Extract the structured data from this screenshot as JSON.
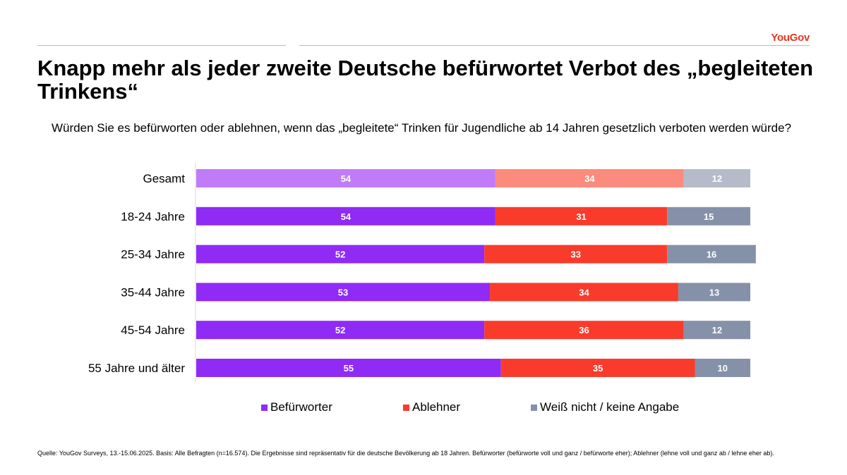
{
  "header": {
    "logo_text": "YouGov",
    "title": "Knapp mehr als jeder zweite Deutsche befürwortet Verbot des „begleiteten Trinkens“",
    "question": "Würden Sie es befürworten oder ablehnen, wenn das „begleitete“ Trinken für Jugendliche ab 14 Jahren gesetzlich verboten werden würde?"
  },
  "colors": {
    "accent": "#e8351f",
    "befuerworter": "#8f2bf5",
    "ablehner": "#f93b2b",
    "weiss_nicht": "#8591a8",
    "befuerworter_total": "#c07bf8",
    "ablehner_total": "#fb8b7d",
    "weiss_nicht_total": "#b5bbc8"
  },
  "chart_data": {
    "type": "bar",
    "orientation": "horizontal",
    "stacked": true,
    "categories": [
      "Gesamt",
      "18-24 Jahre",
      "25-34 Jahre",
      "35-44 Jahre",
      "45-54 Jahre",
      "55 Jahre und älter"
    ],
    "series": [
      {
        "name": "Befürworter",
        "values": [
          54,
          54,
          52,
          53,
          52,
          55
        ]
      },
      {
        "name": "Ablehner",
        "values": [
          34,
          31,
          33,
          34,
          36,
          35
        ]
      },
      {
        "name": "Weiß nicht / keine Angabe",
        "values": [
          12,
          15,
          16,
          13,
          12,
          10
        ]
      }
    ],
    "xlim": [
      0,
      100
    ],
    "legend_position": "bottom"
  },
  "legend": {
    "items": [
      {
        "label": "Befürworter"
      },
      {
        "label": "Ablehner"
      },
      {
        "label": "Weiß nicht / keine Angabe"
      }
    ]
  },
  "footer": {
    "source": "Quelle: YouGov Surveys, 13.-15.06.2025. Basis: Alle Befragten (n=16.574). Die Ergebnisse sind repräsentativ für die deutsche Bevölkerung ab 18 Jahren. Befürworter (befürworte voll und ganz / befürworte eher); Ablehner (lehne voll und ganz ab / lehne eher ab)."
  }
}
